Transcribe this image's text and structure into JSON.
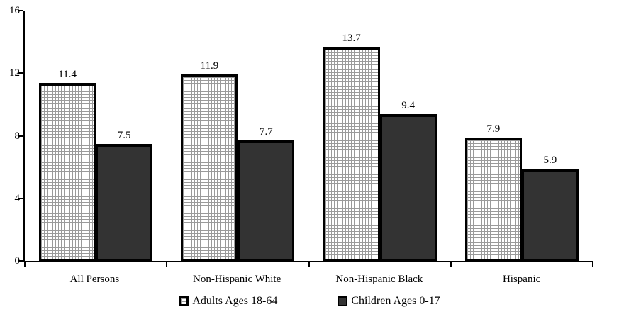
{
  "chart_data": {
    "type": "bar",
    "categories": [
      "All Persons",
      "Non-Hispanic White",
      "Non-Hispanic Black",
      "Hispanic"
    ],
    "series": [
      {
        "name": "Adults Ages 18-64",
        "values": [
          11.4,
          11.9,
          13.7,
          7.9
        ],
        "style": "crosshatch",
        "fill": "#ffffff",
        "pattern_color": "#9a9a9a",
        "border": "#000000"
      },
      {
        "name": "Children Ages 0-17",
        "values": [
          7.5,
          7.7,
          9.4,
          5.9
        ],
        "style": "solid",
        "fill": "#333333",
        "border": "#000000"
      }
    ],
    "title": "",
    "xlabel": "",
    "ylabel": "",
    "ylim": [
      0,
      16
    ],
    "yticks": [
      0,
      4,
      8,
      12,
      16
    ],
    "grid": false,
    "legend_position": "bottom",
    "value_labels": true,
    "value_label_decimals": 1
  }
}
